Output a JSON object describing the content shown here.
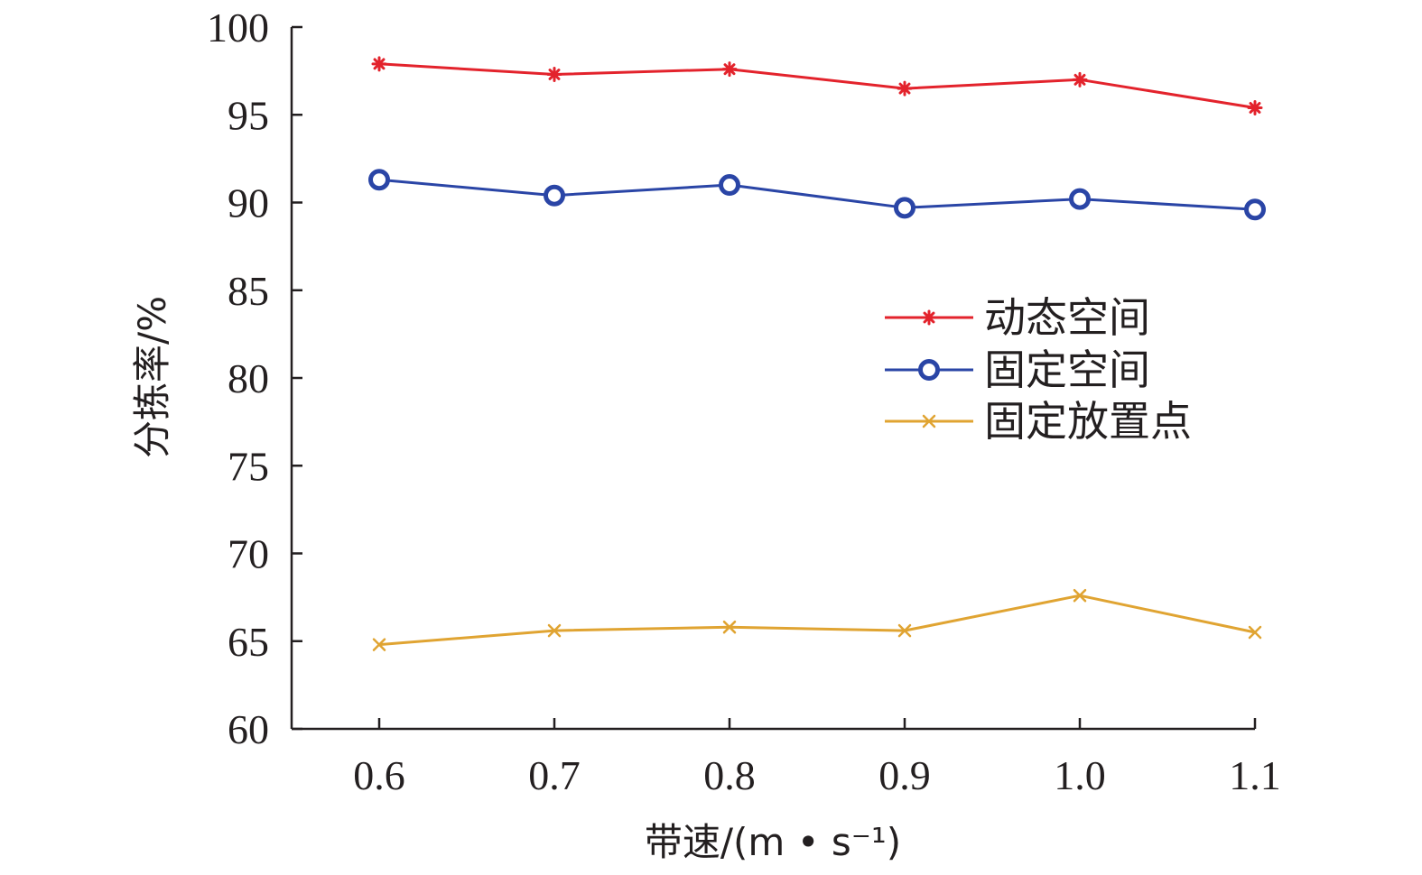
{
  "chart_data": {
    "type": "line",
    "title": "",
    "xlabel": "带速/(m • s⁻¹)",
    "ylabel": "分拣率/%",
    "x": [
      0.6,
      0.7,
      0.8,
      0.9,
      1.0,
      1.1
    ],
    "x_tick_labels": [
      "0.6",
      "0.7",
      "0.8",
      "0.9",
      "1.0",
      "1.1"
    ],
    "xlim": [
      0.55,
      1.1
    ],
    "ylim": [
      60,
      100
    ],
    "y_ticks": [
      60,
      65,
      70,
      75,
      80,
      85,
      90,
      95,
      100
    ],
    "grid": false,
    "legend_position": "right",
    "series": [
      {
        "name": "动态空间",
        "color": "#e3232c",
        "marker": "asterisk",
        "values": [
          97.9,
          97.3,
          97.6,
          96.5,
          97.0,
          95.4
        ]
      },
      {
        "name": "固定空间",
        "color": "#2a45a6",
        "marker": "circle",
        "values": [
          91.3,
          90.4,
          91.0,
          89.7,
          90.2,
          89.6
        ]
      },
      {
        "name": "固定放置点",
        "color": "#e0a432",
        "marker": "x",
        "values": [
          64.8,
          65.6,
          65.8,
          65.6,
          67.6,
          65.5
        ]
      }
    ]
  }
}
